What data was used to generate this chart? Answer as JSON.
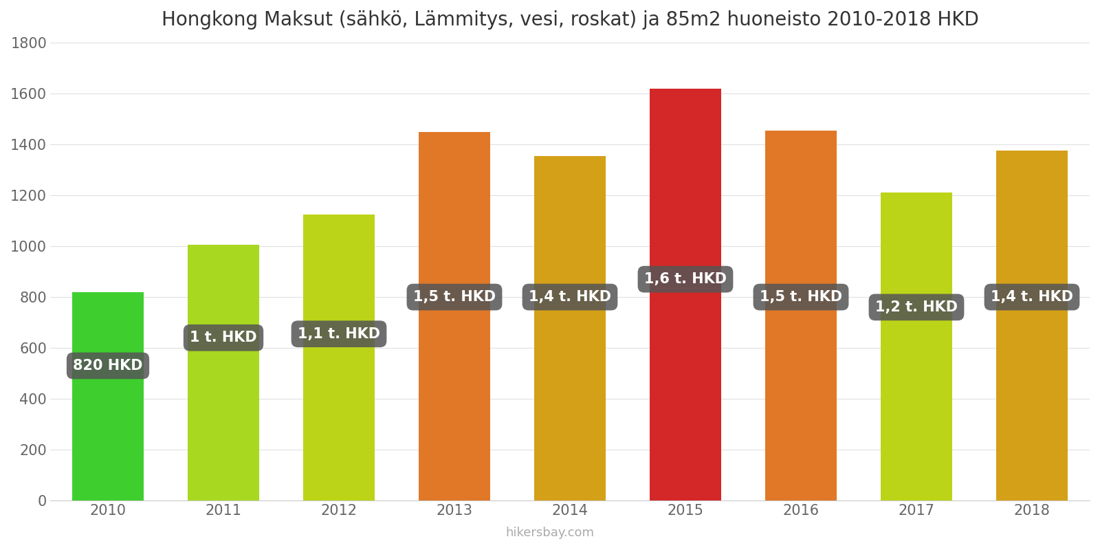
{
  "title": "Hongkong Maksut (sähkö, Lämmitys, vesi, roskat) ja 85m2 huoneisto 2010-2018 HKD",
  "years": [
    2010,
    2011,
    2012,
    2013,
    2014,
    2015,
    2016,
    2017,
    2018
  ],
  "values": [
    820,
    1005,
    1125,
    1450,
    1355,
    1620,
    1455,
    1210,
    1375
  ],
  "bar_colors": [
    "#3ecf2e",
    "#a8d820",
    "#bcd418",
    "#e07828",
    "#d4a018",
    "#d42828",
    "#e07828",
    "#bcd418",
    "#d4a018"
  ],
  "labels": [
    "820 HKD",
    "1 t. HKD",
    "1,1 t. HKD",
    "1,5 t. HKD",
    "1,4 t. HKD",
    "1,6 t. HKD",
    "1,5 t. HKD",
    "1,2 t. HKD",
    "1,4 t. HKD"
  ],
  "ylim": [
    0,
    1800
  ],
  "yticks": [
    0,
    200,
    400,
    600,
    800,
    1000,
    1200,
    1400,
    1600,
    1800
  ],
  "watermark": "hikersbay.com",
  "bg_color": "#ffffff",
  "label_box_color": "#555555",
  "label_text_color": "#ffffff",
  "title_fontsize": 20,
  "label_fontsize": 15,
  "tick_fontsize": 15,
  "bar_width": 0.62
}
